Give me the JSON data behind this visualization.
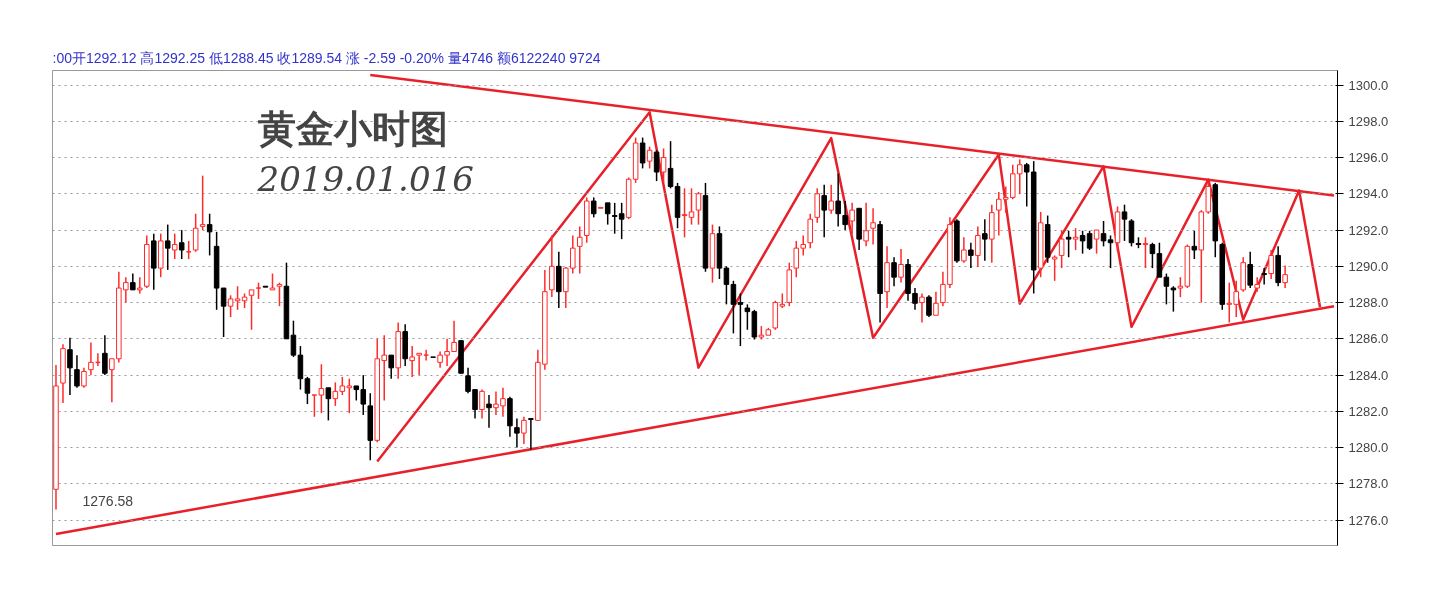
{
  "chart_data": {
    "type": "candlestick",
    "title": "黄金小时图",
    "subtitle": "2019.01.016",
    "annotations": [
      ":00开1292.12 高1292.25 低1288.45 收1289.54 涨 -2.59 -0.20% 量4746 额6122240 9724",
      "1276.58"
    ],
    "categories": [
      null,
      null,
      null,
      null,
      null,
      null,
      null,
      null,
      null,
      null,
      null,
      null,
      null,
      null,
      null,
      null,
      null,
      null,
      null,
      null,
      null,
      null,
      null,
      null,
      null,
      null,
      null,
      null,
      null,
      null,
      null,
      null,
      null,
      null,
      null,
      null,
      null,
      null,
      null,
      null,
      null,
      null,
      null,
      null,
      null,
      null,
      null,
      null,
      null,
      null,
      null,
      null,
      null,
      null,
      null,
      null,
      null,
      null,
      null,
      null,
      null,
      null,
      null,
      null,
      null,
      null,
      null,
      null,
      null,
      null,
      null,
      null,
      null,
      null,
      null,
      null,
      null,
      null,
      null,
      null,
      null,
      null,
      null,
      null,
      null,
      null,
      null,
      null,
      null,
      null,
      null,
      null,
      null,
      null,
      null,
      null,
      null,
      null,
      null,
      null,
      null,
      null,
      null,
      null,
      null,
      null,
      null,
      null,
      null,
      null,
      null,
      null,
      null,
      null,
      null,
      null,
      null,
      null,
      null,
      null,
      null,
      null,
      null,
      null,
      null,
      null,
      null,
      null,
      null,
      null,
      null,
      null,
      null,
      null,
      null,
      null,
      null,
      null,
      null,
      null,
      null,
      null,
      null,
      null,
      null,
      null,
      null,
      null,
      null,
      null,
      null,
      null,
      null,
      null,
      null,
      null,
      null,
      null,
      null,
      null,
      null,
      null,
      null,
      null,
      null,
      null,
      null,
      null,
      null,
      null,
      null,
      null,
      null,
      null,
      null,
      null,
      null,
      null,
      null,
      null,
      null,
      null,
      null,
      null
    ],
    "ohlc": [
      [
        1277.7,
        1284.56,
        1276.58,
        1283.4
      ],
      [
        1283.56,
        1285.7,
        1282.46,
        1285.46
      ],
      [
        1285.4,
        1286.06,
        1282.9,
        1284.4
      ],
      [
        1284.3,
        1285.1,
        1283.3,
        1283.4
      ],
      [
        1283.4,
        1284.4,
        1283.3,
        1284.2
      ],
      [
        1284.3,
        1285.8,
        1284.0,
        1284.7
      ],
      [
        1284.7,
        1285.2,
        1284.5,
        1284.7
      ],
      [
        1285.2,
        1286.2,
        1284.0,
        1284.1
      ],
      [
        1284.3,
        1284.9,
        1282.5,
        1284.9
      ],
      [
        1284.9,
        1289.7,
        1284.7,
        1288.8
      ],
      [
        1288.7,
        1289.4,
        1288.0,
        1289.1
      ],
      [
        1289.1,
        1289.6,
        1288.7,
        1288.7
      ],
      [
        1288.7,
        1289.4,
        1288.5,
        1288.8
      ],
      [
        1288.9,
        1291.7,
        1288.8,
        1291.2
      ],
      [
        1291.4,
        1291.8,
        1288.7,
        1289.9
      ],
      [
        1289.9,
        1291.8,
        1289.4,
        1291.4
      ],
      [
        1291.4,
        1292.3,
        1289.8,
        1291.0
      ],
      [
        1290.9,
        1291.8,
        1290.4,
        1291.2
      ],
      [
        1291.3,
        1292.0,
        1290.4,
        1290.9
      ],
      [
        1290.8,
        1291.4,
        1290.4,
        1290.8
      ],
      [
        1290.9,
        1292.9,
        1290.8,
        1292.1
      ],
      [
        1292.2,
        1295.0,
        1292.0,
        1292.3
      ],
      [
        1292.3,
        1292.9,
        1290.6,
        1291.9
      ],
      [
        1291.1,
        1291.9,
        1287.6,
        1288.8
      ],
      [
        1288.8,
        1288.8,
        1286.1,
        1287.8
      ],
      [
        1287.8,
        1288.4,
        1287.2,
        1288.2
      ],
      [
        1288.1,
        1288.9,
        1287.6,
        1288.2
      ],
      [
        1288.1,
        1288.5,
        1287.7,
        1288.3
      ],
      [
        1288.4,
        1288.7,
        1286.5,
        1288.7
      ],
      [
        1288.8,
        1289.1,
        1288.2,
        1288.8
      ],
      [
        1288.9,
        1288.9,
        1288.85,
        1288.85
      ],
      [
        1288.7,
        1289.6,
        1288.7,
        1288.8
      ],
      [
        1288.9,
        1289.1,
        1287.8,
        1289.0
      ],
      [
        1288.9,
        1290.2,
        1286.0,
        1286.0
      ],
      [
        1286.2,
        1287.0,
        1285.0,
        1285.1
      ],
      [
        1285.1,
        1285.6,
        1283.2,
        1283.8
      ],
      [
        1283.8,
        1283.9,
        1282.4,
        1283.0
      ],
      [
        1282.9,
        1282.9,
        1281.7,
        1282.9
      ],
      [
        1282.9,
        1284.6,
        1281.9,
        1283.26
      ],
      [
        1283.3,
        1283.3,
        1281.5,
        1282.7
      ],
      [
        1282.7,
        1283.6,
        1282.3,
        1283.1
      ],
      [
        1283.1,
        1283.9,
        1282.9,
        1283.4
      ],
      [
        1283.3,
        1283.8,
        1281.9,
        1283.4
      ],
      [
        1283.4,
        1283.4,
        1282.6,
        1283.2
      ],
      [
        1283.2,
        1284.0,
        1281.8,
        1282.4
      ],
      [
        1282.3,
        1283.0,
        1279.3,
        1280.4
      ],
      [
        1280.4,
        1286.0,
        1280.3,
        1284.9
      ],
      [
        1284.8,
        1286.2,
        1282.6,
        1285.1
      ],
      [
        1285.1,
        1285.1,
        1283.8,
        1284.4
      ],
      [
        1284.4,
        1286.9,
        1283.8,
        1286.4
      ],
      [
        1286.4,
        1286.8,
        1284.5,
        1284.9
      ],
      [
        1284.8,
        1285.6,
        1283.9,
        1285.0
      ],
      [
        1285.1,
        1285.2,
        1284.0,
        1285.2
      ],
      [
        1285.1,
        1285.4,
        1284.8,
        1285.1
      ],
      [
        1285.0,
        1285.0,
        1284.98,
        1284.98
      ],
      [
        1284.7,
        1285.3,
        1284.4,
        1285.1
      ],
      [
        1285.1,
        1286.0,
        1284.5,
        1285.3
      ],
      [
        1285.3,
        1287.0,
        1285.3,
        1285.8
      ],
      [
        1285.9,
        1285.9,
        1284.1,
        1284.1
      ],
      [
        1283.96,
        1284.4,
        1283.0,
        1283.1
      ],
      [
        1283.2,
        1283.2,
        1281.6,
        1282.1
      ],
      [
        1282.1,
        1283.2,
        1281.6,
        1283.1
      ],
      [
        1282.4,
        1282.9,
        1281.1,
        1282.2
      ],
      [
        1282.2,
        1283.1,
        1281.8,
        1282.4
      ],
      [
        1282.3,
        1283.3,
        1281.7,
        1282.7
      ],
      [
        1282.7,
        1282.8,
        1280.6,
        1281.2
      ],
      [
        1281.1,
        1281.6,
        1280.0,
        1280.8
      ],
      [
        1280.8,
        1281.7,
        1280.2,
        1281.5
      ],
      [
        1281.6,
        1281.6,
        1279.9,
        1281.55
      ],
      [
        1281.5,
        1285.4,
        1281.5,
        1284.7
      ],
      [
        1284.6,
        1289.8,
        1284.3,
        1288.6
      ],
      [
        1288.7,
        1291.7,
        1288.3,
        1290.0
      ],
      [
        1290.0,
        1290.8,
        1287.7,
        1288.6
      ],
      [
        1288.6,
        1289.96,
        1287.7,
        1289.9
      ],
      [
        1289.9,
        1291.7,
        1289.6,
        1291.0
      ],
      [
        1291.1,
        1292.2,
        1289.6,
        1291.6
      ],
      [
        1291.7,
        1293.8,
        1291.3,
        1293.6
      ],
      [
        1293.6,
        1293.8,
        1292.7,
        1292.9
      ],
      [
        1293.2,
        1293.25,
        1293.2,
        1293.25
      ],
      [
        1293.5,
        1293.5,
        1292.3,
        1292.9
      ],
      [
        1292.8,
        1293.5,
        1291.8,
        1292.75
      ],
      [
        1292.9,
        1293.5,
        1291.5,
        1292.6
      ],
      [
        1292.7,
        1294.9,
        1292.6,
        1294.8
      ],
      [
        1294.8,
        1297.1,
        1294.6,
        1296.8
      ],
      [
        1296.8,
        1297.1,
        1295.4,
        1295.7
      ],
      [
        1295.8,
        1296.6,
        1295.4,
        1296.4
      ],
      [
        1296.3,
        1296.4,
        1294.7,
        1295.2
      ],
      [
        1295.2,
        1296.5,
        1294.6,
        1296.0
      ],
      [
        1295.4,
        1296.9,
        1294.3,
        1294.4
      ],
      [
        1294.4,
        1294.6,
        1292.1,
        1292.7
      ],
      [
        1292.8,
        1294.3,
        1291.6,
        1292.85
      ],
      [
        1292.7,
        1294.3,
        1292.3,
        1293.0
      ],
      [
        1293.1,
        1294.1,
        1292.3,
        1294.0
      ],
      [
        1293.9,
        1294.6,
        1289.7,
        1289.9
      ],
      [
        1289.9,
        1292.3,
        1289.1,
        1291.8
      ],
      [
        1291.8,
        1292.2,
        1289.3,
        1289.9
      ],
      [
        1289.9,
        1290.0,
        1287.9,
        1289.0
      ],
      [
        1289.0,
        1289.2,
        1286.3,
        1287.9
      ],
      [
        1288.0,
        1288.5,
        1285.6,
        1287.9
      ],
      [
        1287.7,
        1287.9,
        1286.5,
        1287.5
      ],
      [
        1287.5,
        1287.6,
        1285.96,
        1286.1
      ],
      [
        1286.1,
        1286.7,
        1285.96,
        1286.2
      ],
      [
        1286.2,
        1286.6,
        1286.2,
        1286.5
      ],
      [
        1286.6,
        1288.1,
        1286.5,
        1288.0
      ],
      [
        1287.8,
        1288.5,
        1287.7,
        1287.9
      ],
      [
        1288.0,
        1290.2,
        1287.8,
        1289.8
      ],
      [
        1289.9,
        1291.4,
        1289.4,
        1291.0
      ],
      [
        1291.0,
        1291.7,
        1290.6,
        1291.2
      ],
      [
        1291.3,
        1292.9,
        1291.0,
        1292.6
      ],
      [
        1292.7,
        1294.3,
        1292.4,
        1294.0
      ],
      [
        1293.9,
        1294.5,
        1291.6,
        1293.1
      ],
      [
        1293.1,
        1294.5,
        1292.9,
        1293.6
      ],
      [
        1293.6,
        1295.1,
        1292.2,
        1292.9
      ],
      [
        1292.8,
        1293.6,
        1292.0,
        1292.3
      ],
      [
        1292.5,
        1293.5,
        1291.8,
        1293.1
      ],
      [
        1293.2,
        1293.2,
        1290.9,
        1291.5
      ],
      [
        1291.4,
        1293.5,
        1291.1,
        1291.96
      ],
      [
        1292.1,
        1293.2,
        1291.2,
        1292.4
      ],
      [
        1292.3,
        1292.5,
        1286.9,
        1288.5
      ],
      [
        1288.6,
        1291.1,
        1287.7,
        1290.2
      ],
      [
        1290.2,
        1290.5,
        1288.9,
        1289.4
      ],
      [
        1289.4,
        1290.96,
        1289.1,
        1290.1
      ],
      [
        1290.1,
        1290.4,
        1288.1,
        1288.5
      ],
      [
        1288.5,
        1288.8,
        1287.6,
        1287.96
      ],
      [
        1288.0,
        1288.5,
        1286.9,
        1288.3
      ],
      [
        1288.3,
        1288.4,
        1287.2,
        1287.3
      ],
      [
        1287.3,
        1288.6,
        1287.3,
        1287.96
      ],
      [
        1288.0,
        1289.7,
        1287.8,
        1289.0
      ],
      [
        1289.0,
        1292.7,
        1288.8,
        1292.3
      ],
      [
        1292.5,
        1292.6,
        1290.2,
        1290.3
      ],
      [
        1290.3,
        1291.6,
        1290.2,
        1290.9
      ],
      [
        1290.9,
        1291.3,
        1289.9,
        1290.6
      ],
      [
        1290.6,
        1292.2,
        1289.96,
        1291.7
      ],
      [
        1291.8,
        1292.6,
        1290.3,
        1291.5
      ],
      [
        1291.5,
        1293.4,
        1290.2,
        1292.96
      ],
      [
        1293.1,
        1294.1,
        1291.7,
        1293.7
      ],
      [
        1293.7,
        1294.4,
        1292.96,
        1293.8
      ],
      [
        1293.8,
        1295.6,
        1293.7,
        1295.1
      ],
      [
        1295.1,
        1295.9,
        1293.98,
        1295.6
      ],
      [
        1295.6,
        1295.7,
        1293.3,
        1295.2
      ],
      [
        1295.2,
        1295.8,
        1288.5,
        1289.8
      ],
      [
        1289.9,
        1293.0,
        1289.4,
        1292.4
      ],
      [
        1292.3,
        1292.8,
        1290.2,
        1290.5
      ],
      [
        1290.4,
        1290.6,
        1289.2,
        1290.5
      ],
      [
        1290.6,
        1291.96,
        1289.9,
        1291.5
      ],
      [
        1291.6,
        1291.96,
        1290.5,
        1291.5
      ],
      [
        1291.5,
        1292.1,
        1290.9,
        1291.6
      ],
      [
        1291.7,
        1291.96,
        1290.7,
        1291.4
      ],
      [
        1291.8,
        1291.96,
        1290.9,
        1291.0
      ],
      [
        1291.5,
        1292.0,
        1290.7,
        1292.0
      ],
      [
        1291.8,
        1292.5,
        1291.1,
        1291.4
      ],
      [
        1291.46,
        1291.7,
        1289.9,
        1291.3
      ],
      [
        1291.3,
        1293.3,
        1290.8,
        1293.0
      ],
      [
        1293.0,
        1293.4,
        1291.4,
        1292.6
      ],
      [
        1292.5,
        1292.6,
        1291.1,
        1291.3
      ],
      [
        1291.26,
        1291.6,
        1291.0,
        1291.2
      ],
      [
        1291.2,
        1291.6,
        1289.9,
        1291.26
      ],
      [
        1291.2,
        1291.3,
        1289.9,
        1290.7
      ],
      [
        1290.7,
        1291.3,
        1289.4,
        1289.4
      ],
      [
        1289.4,
        1289.6,
        1287.9,
        1288.9
      ],
      [
        1288.8,
        1288.9,
        1287.5,
        1288.7
      ],
      [
        1288.8,
        1289.4,
        1288.3,
        1288.9
      ],
      [
        1288.9,
        1291.2,
        1288.8,
        1291.1
      ],
      [
        1291.1,
        1291.96,
        1290.4,
        1290.9
      ],
      [
        1290.9,
        1293.1,
        1288.0,
        1293.0
      ],
      [
        1293.0,
        1294.6,
        1292.9,
        1294.4
      ],
      [
        1294.5,
        1294.6,
        1290.5,
        1291.4
      ],
      [
        1291.2,
        1291.3,
        1287.6,
        1287.9
      ],
      [
        1287.9,
        1289.1,
        1286.9,
        1287.96
      ],
      [
        1287.9,
        1289.2,
        1287.2,
        1288.6
      ],
      [
        1288.7,
        1290.5,
        1288.6,
        1290.2
      ],
      [
        1290.1,
        1290.8,
        1288.8,
        1288.96
      ],
      [
        1288.8,
        1289.4,
        1288.6,
        1289.0
      ],
      [
        1289.6,
        1289.9,
        1289.0,
        1289.55
      ],
      [
        1289.6,
        1290.9,
        1289.3,
        1290.6
      ],
      [
        1290.6,
        1291.1,
        1288.9,
        1289.1
      ],
      [
        1289.1,
        1290.05,
        1288.8,
        1289.54
      ],
      null,
      null,
      null,
      null,
      null,
      null,
      null
    ],
    "series": [
      {
        "type": "line",
        "color": "#e8202a",
        "values": [
          null,
          null,
          null,
          null,
          null,
          null,
          null,
          null,
          null,
          null,
          null,
          null,
          null,
          null,
          null,
          null,
          null,
          null,
          null,
          null,
          null,
          null,
          null,
          null,
          null,
          null,
          null,
          null,
          null,
          null,
          null,
          null,
          null,
          null,
          null,
          null,
          null,
          null,
          null,
          null,
          null,
          null,
          null,
          null,
          null,
          1300.55,
          null,
          null,
          null,
          null,
          null,
          null,
          null,
          null,
          null,
          null,
          null,
          null,
          null,
          null,
          null,
          null,
          null,
          null,
          null,
          null,
          null,
          null,
          null,
          null,
          null,
          null,
          null,
          null,
          null,
          null,
          null,
          null,
          null,
          null,
          null,
          null,
          null,
          null,
          null,
          null,
          null,
          null,
          null,
          null,
          null,
          null,
          null,
          null,
          null,
          null,
          null,
          null,
          null,
          null,
          null,
          null,
          null,
          null,
          null,
          null,
          null,
          null,
          null,
          null,
          null,
          null,
          null,
          null,
          null,
          null,
          null,
          null,
          null,
          null,
          null,
          null,
          null,
          null,
          null,
          null,
          null,
          null,
          null,
          null,
          null,
          null,
          null,
          null,
          null,
          null,
          null,
          null,
          null,
          null,
          null,
          null,
          null,
          null,
          null,
          null,
          null,
          null,
          null,
          null,
          null,
          null,
          null,
          null,
          null,
          null,
          null,
          null,
          null,
          null,
          null,
          null,
          null,
          null,
          null,
          null,
          null,
          null,
          null,
          null,
          null,
          null,
          null,
          null,
          null,
          null,
          null,
          null,
          null,
          null,
          null,
          null,
          null,
          1293.9
        ]
      },
      {
        "type": "line",
        "color": "#e8202a",
        "values": [
          1275.24,
          null,
          null,
          null,
          null,
          null,
          null,
          null,
          null,
          null,
          null,
          null,
          null,
          null,
          null,
          null,
          null,
          null,
          null,
          null,
          null,
          null,
          null,
          null,
          null,
          null,
          null,
          null,
          null,
          null,
          null,
          null,
          null,
          null,
          null,
          null,
          null,
          null,
          null,
          null,
          null,
          null,
          null,
          null,
          null,
          null,
          null,
          null,
          null,
          null,
          null,
          null,
          null,
          null,
          null,
          null,
          null,
          null,
          null,
          null,
          null,
          null,
          null,
          null,
          null,
          null,
          null,
          null,
          null,
          null,
          null,
          null,
          null,
          null,
          null,
          null,
          null,
          null,
          null,
          null,
          null,
          null,
          null,
          null,
          null,
          null,
          null,
          null,
          null,
          null,
          null,
          null,
          null,
          null,
          null,
          null,
          null,
          null,
          null,
          null,
          null,
          null,
          null,
          null,
          null,
          null,
          null,
          null,
          null,
          null,
          null,
          null,
          null,
          null,
          null,
          null,
          null,
          null,
          null,
          null,
          null,
          null,
          null,
          null,
          null,
          null,
          null,
          null,
          null,
          null,
          null,
          null,
          null,
          null,
          null,
          null,
          null,
          null,
          null,
          null,
          null,
          null,
          null,
          null,
          null,
          null,
          null,
          null,
          null,
          null,
          null,
          null,
          null,
          null,
          null,
          null,
          null,
          null,
          null,
          null,
          null,
          null,
          null,
          null,
          null,
          null,
          null,
          null,
          null,
          null,
          null,
          null,
          null,
          null,
          null,
          null,
          null,
          null,
          null,
          null,
          null,
          null,
          null,
          1287.8
        ]
      },
      {
        "type": "line",
        "color": "#e8202a",
        "values": [
          null,
          null,
          null,
          null,
          null,
          null,
          null,
          null,
          null,
          null,
          null,
          null,
          null,
          null,
          null,
          null,
          null,
          null,
          null,
          null,
          null,
          null,
          null,
          null,
          null,
          null,
          null,
          null,
          null,
          null,
          null,
          null,
          null,
          null,
          null,
          null,
          null,
          null,
          null,
          null,
          null,
          null,
          null,
          null,
          null,
          null,
          1279.23,
          null,
          null,
          null,
          null,
          null,
          null,
          null,
          null,
          null,
          null,
          null,
          null,
          null,
          null,
          null,
          null,
          null,
          null,
          null,
          null,
          null,
          null,
          null,
          null,
          null,
          null,
          null,
          null,
          null,
          null,
          null,
          null,
          null,
          null,
          null,
          null,
          null,
          null,
          1298.5,
          null,
          null,
          null,
          null,
          null,
          null,
          1284.41,
          null,
          null,
          null,
          null,
          null,
          null,
          null,
          null,
          null,
          null,
          null,
          null,
          null,
          null,
          null,
          null,
          null,
          null,
          1297.07,
          null,
          null,
          null,
          null,
          null,
          1286.06,
          null,
          null,
          null,
          null,
          null,
          null,
          null,
          null,
          null,
          null,
          null,
          null,
          null,
          null,
          null,
          null,
          null,
          1296.17,
          null,
          null,
          1287.94,
          null,
          null,
          null,
          null,
          null,
          null,
          null,
          null,
          null,
          null,
          null,
          1295.51,
          null,
          null,
          null,
          1286.66,
          null,
          null,
          null,
          null,
          null,
          null,
          null,
          null,
          null,
          null,
          1294.78,
          null,
          null,
          null,
          null,
          1287.06,
          null,
          null,
          null,
          null,
          null,
          null,
          null,
          1294.18,
          null,
          null,
          1287.74,
          null,
          null
        ]
      }
    ],
    "ylim": [
      1274.6,
      1300.8
    ],
    "yticks": [
      {
        "value": 1276,
        "label": "1276.0"
      },
      {
        "value": 1278,
        "label": "1278.0"
      },
      {
        "value": 1280,
        "label": "1280.0"
      },
      {
        "value": 1282,
        "label": "1282.0"
      },
      {
        "value": 1284,
        "label": "1284.0"
      },
      {
        "value": 1286,
        "label": "1286.0"
      },
      {
        "value": 1288,
        "label": "1288.0"
      },
      {
        "value": 1290,
        "label": "1290.0"
      },
      {
        "value": 1292,
        "label": "1292.0"
      },
      {
        "value": 1294,
        "label": "1294.0"
      },
      {
        "value": 1296,
        "label": "1296.0"
      },
      {
        "value": 1298,
        "label": "1298.0"
      },
      {
        "value": 1300,
        "label": "1300.0"
      }
    ],
    "grid": "y",
    "tick_labels": "y"
  }
}
